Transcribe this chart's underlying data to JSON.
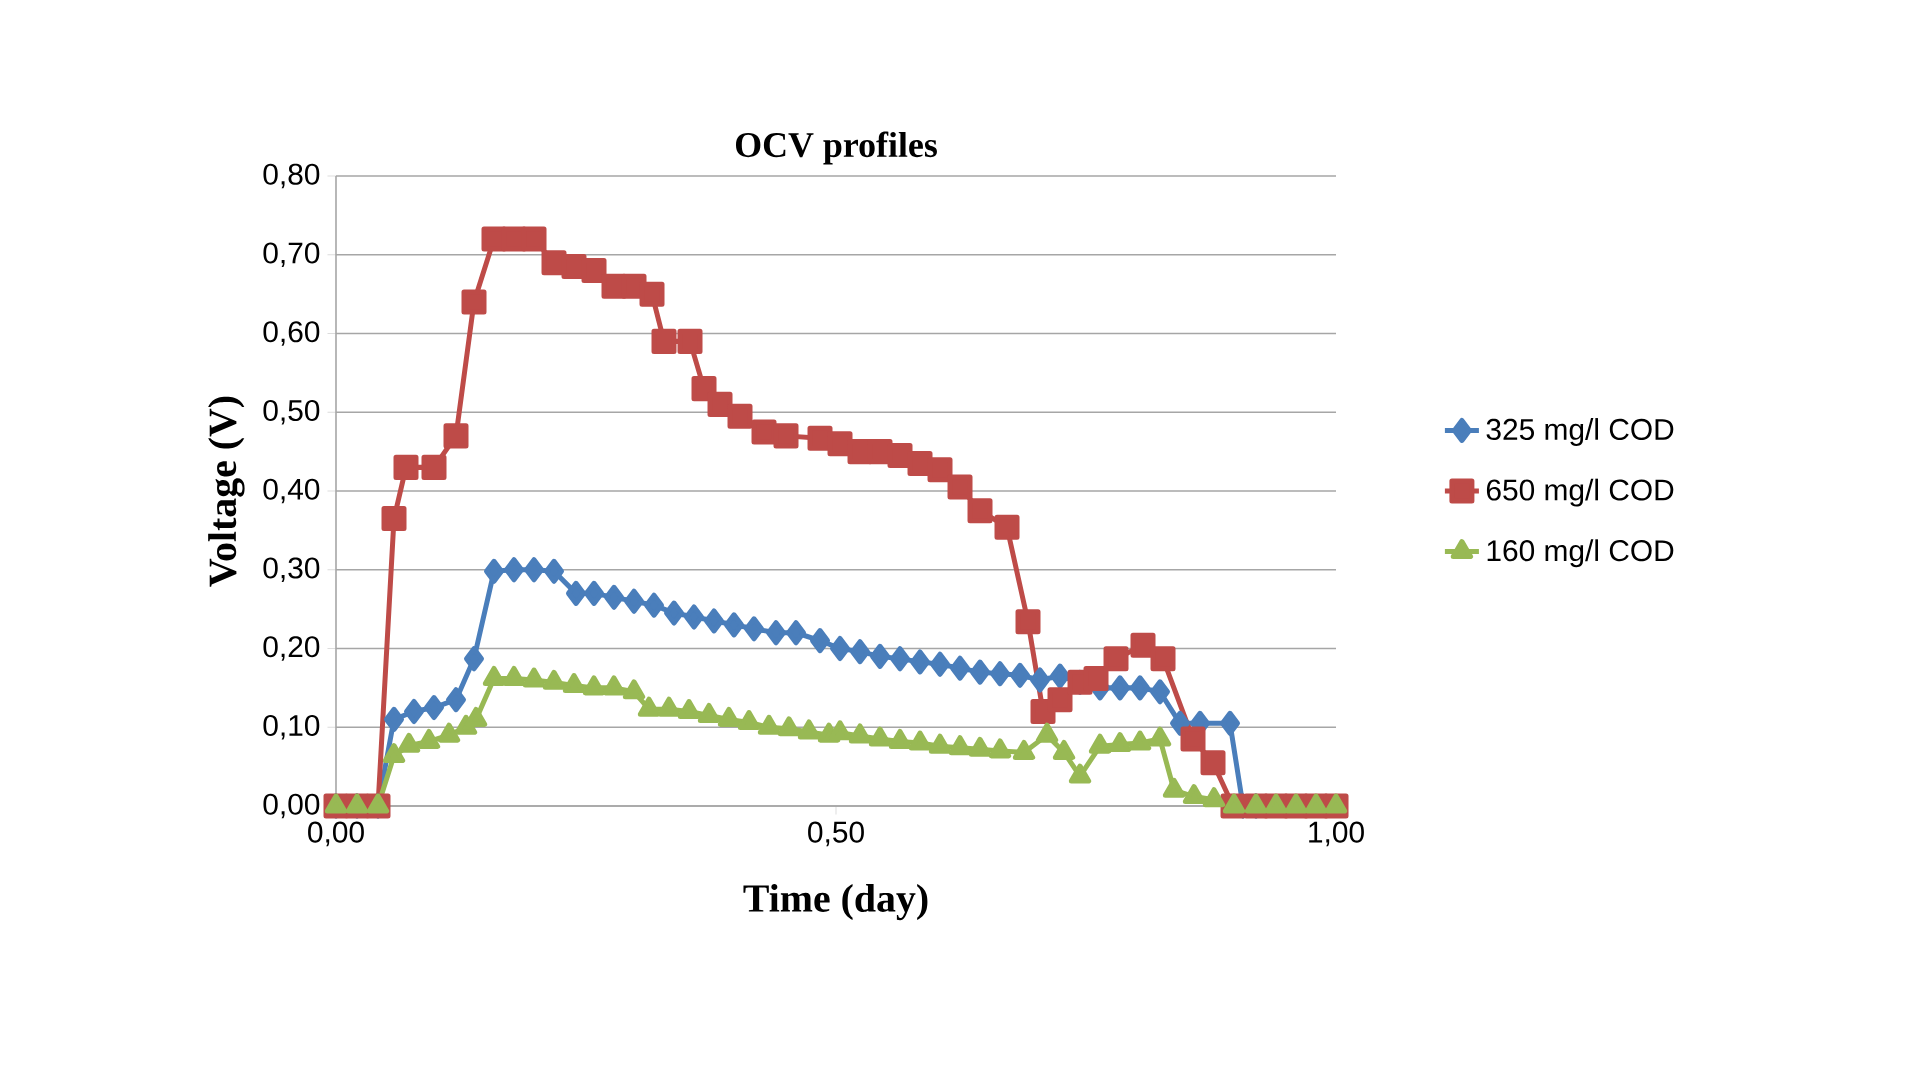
{
  "chart_data": {
    "type": "line",
    "title": "OCV profiles",
    "xlabel": "Time (day)",
    "ylabel": "Voltage (V)",
    "xlim": [
      0,
      1
    ],
    "ylim": [
      0,
      0.8
    ],
    "xticks": [
      {
        "value": 0,
        "label": "0,00"
      },
      {
        "value": 0.5,
        "label": "0,50"
      },
      {
        "value": 1,
        "label": "1,00"
      }
    ],
    "yticks": [
      {
        "value": 0,
        "label": "0,00"
      },
      {
        "value": 0.1,
        "label": "0,10"
      },
      {
        "value": 0.2,
        "label": "0,20"
      },
      {
        "value": 0.3,
        "label": "0,30"
      },
      {
        "value": 0.4,
        "label": "0,40"
      },
      {
        "value": 0.5,
        "label": "0,50"
      },
      {
        "value": 0.6,
        "label": "0,60"
      },
      {
        "value": 0.7,
        "label": "0,70"
      },
      {
        "value": 0.8,
        "label": "0,80"
      }
    ],
    "grid": "y",
    "legend": "right",
    "line_style": "solid",
    "series": [
      {
        "name": "325 mg/l COD",
        "color": "#4a7ebb",
        "marker": "diamond",
        "x": [
          0,
          0.021,
          0.042,
          0.058,
          0.078,
          0.098,
          0.12,
          0.138,
          0.158,
          0.178,
          0.198,
          0.218,
          0.24,
          0.258,
          0.278,
          0.298,
          0.318,
          0.338,
          0.358,
          0.378,
          0.398,
          0.418,
          0.44,
          0.46,
          0.484,
          0.504,
          0.524,
          0.544,
          0.564,
          0.584,
          0.604,
          0.624,
          0.644,
          0.664,
          0.684,
          0.704,
          0.724,
          0.744,
          0.764,
          0.784,
          0.804,
          0.824,
          0.844,
          0.864,
          0.894,
          0.907,
          0.92
        ],
        "values": [
          0,
          0,
          0,
          0.11,
          0.12,
          0.125,
          0.135,
          0.187,
          0.298,
          0.3,
          0.3,
          0.298,
          0.27,
          0.27,
          0.265,
          0.26,
          0.255,
          0.245,
          0.24,
          0.235,
          0.23,
          0.225,
          0.22,
          0.22,
          0.21,
          0.2,
          0.196,
          0.19,
          0.187,
          0.183,
          0.18,
          0.175,
          0.17,
          0.168,
          0.166,
          0.16,
          0.165,
          0.157,
          0.15,
          0.15,
          0.15,
          0.145,
          0.105,
          0.105,
          0.105,
          0,
          0
        ]
      },
      {
        "name": "650 mg/l COD",
        "color": "#be4b48",
        "marker": "square",
        "x": [
          0,
          0.021,
          0.042,
          0.058,
          0.07,
          0.098,
          0.12,
          0.138,
          0.158,
          0.178,
          0.198,
          0.218,
          0.238,
          0.258,
          0.278,
          0.298,
          0.316,
          0.328,
          0.354,
          0.368,
          0.384,
          0.404,
          0.428,
          0.45,
          0.484,
          0.504,
          0.524,
          0.544,
          0.564,
          0.584,
          0.604,
          0.624,
          0.644,
          0.671,
          0.692,
          0.707,
          0.724,
          0.744,
          0.76,
          0.78,
          0.807,
          0.827,
          0.857,
          0.877,
          0.897,
          0.92,
          0.94,
          0.96,
          0.98,
          1.0
        ],
        "values": [
          0,
          0,
          0,
          0.365,
          0.43,
          0.43,
          0.47,
          0.64,
          0.72,
          0.72,
          0.72,
          0.69,
          0.685,
          0.68,
          0.66,
          0.66,
          0.65,
          0.59,
          0.59,
          0.53,
          0.51,
          0.495,
          0.475,
          0.47,
          0.467,
          0.46,
          0.45,
          0.45,
          0.445,
          0.435,
          0.427,
          0.405,
          0.375,
          0.354,
          0.234,
          0.12,
          0.135,
          0.157,
          0.162,
          0.187,
          0.204,
          0.187,
          0.085,
          0.055,
          0,
          0,
          0,
          0,
          0,
          0
        ]
      },
      {
        "name": "160 mg/l COD",
        "color": "#98b954",
        "marker": "triangle",
        "x": [
          0,
          0.021,
          0.042,
          0.058,
          0.073,
          0.093,
          0.113,
          0.13,
          0.14,
          0.158,
          0.178,
          0.198,
          0.218,
          0.238,
          0.258,
          0.278,
          0.298,
          0.313,
          0.333,
          0.353,
          0.373,
          0.393,
          0.413,
          0.433,
          0.453,
          0.473,
          0.493,
          0.504,
          0.524,
          0.544,
          0.564,
          0.584,
          0.604,
          0.624,
          0.644,
          0.664,
          0.688,
          0.711,
          0.728,
          0.744,
          0.764,
          0.784,
          0.804,
          0.824,
          0.838,
          0.858,
          0.878,
          0.898,
          0.92,
          0.94,
          0.96,
          0.98,
          1.0
        ],
        "values": [
          0,
          0,
          0,
          0.064,
          0.077,
          0.082,
          0.09,
          0.1,
          0.11,
          0.162,
          0.162,
          0.16,
          0.157,
          0.153,
          0.15,
          0.15,
          0.145,
          0.123,
          0.123,
          0.12,
          0.115,
          0.11,
          0.106,
          0.1,
          0.098,
          0.094,
          0.09,
          0.093,
          0.089,
          0.085,
          0.082,
          0.08,
          0.076,
          0.074,
          0.072,
          0.07,
          0.068,
          0.09,
          0.068,
          0.038,
          0.076,
          0.078,
          0.08,
          0.085,
          0.02,
          0.012,
          0.008,
          0,
          0,
          0,
          0,
          0,
          0
        ]
      }
    ]
  }
}
